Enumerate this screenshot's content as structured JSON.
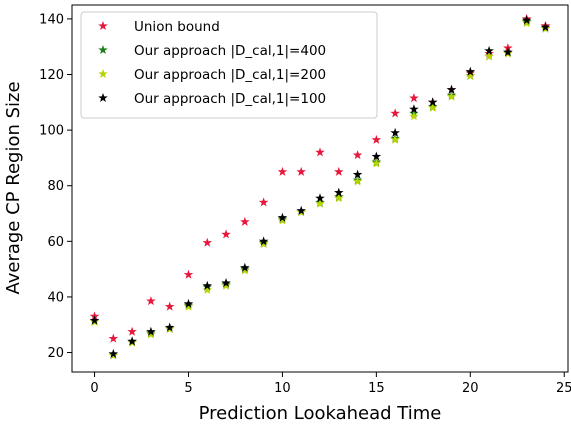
{
  "chart_data": {
    "type": "scatter",
    "title": "",
    "xlabel": "Prediction Lookahead Time",
    "ylabel": "Average CP Region Size",
    "xlim": [
      -1.2,
      25.2
    ],
    "ylim": [
      13,
      145
    ],
    "xticks": [
      0,
      5,
      10,
      15,
      20,
      25
    ],
    "yticks": [
      20,
      40,
      60,
      80,
      100,
      120,
      140
    ],
    "grid": false,
    "legend_position": "top-left",
    "marker": "star",
    "x": [
      0,
      1,
      2,
      3,
      4,
      5,
      6,
      7,
      8,
      9,
      10,
      11,
      12,
      13,
      14,
      15,
      16,
      17,
      18,
      19,
      20,
      21,
      22,
      23,
      24
    ],
    "series": [
      {
        "name": "Union bound",
        "color": "#e8173c",
        "values": [
          33,
          25,
          27.5,
          38.5,
          36.5,
          48,
          59.5,
          62.5,
          67,
          74,
          85,
          85,
          92,
          85,
          91,
          96.5,
          106,
          111.5,
          110,
          114.5,
          120.5,
          127.5,
          129.5,
          140,
          137.5
        ]
      },
      {
        "name": "Our approach |D_cal,1|=400",
        "color": "#1f7f1f",
        "values": [
          31.5,
          19,
          24,
          27,
          28.5,
          37,
          43.5,
          44.5,
          50,
          59.5,
          68,
          70.5,
          74,
          76,
          82,
          88.5,
          97,
          106,
          108.5,
          112.5,
          119.5,
          126.5,
          128,
          139,
          136.5
        ]
      },
      {
        "name": "Our approach |D_cal,1|=200",
        "color": "#b8d400",
        "values": [
          31,
          19,
          23.5,
          26.5,
          28.5,
          36.5,
          42.5,
          44,
          49.5,
          59,
          67.5,
          70.5,
          73.5,
          75.5,
          81.5,
          88,
          96.5,
          105,
          108,
          112,
          119.5,
          126.5,
          127.5,
          138.5,
          136.5
        ]
      },
      {
        "name": "Our approach |D_cal,1|=100",
        "color": "#000000",
        "values": [
          31.5,
          19.5,
          24,
          27.5,
          29,
          37.5,
          44,
          45,
          50.5,
          60,
          68.5,
          71,
          75.5,
          77.5,
          84,
          90.5,
          99,
          107.5,
          110,
          114.5,
          121,
          128.5,
          128,
          139.5,
          137
        ]
      }
    ]
  }
}
